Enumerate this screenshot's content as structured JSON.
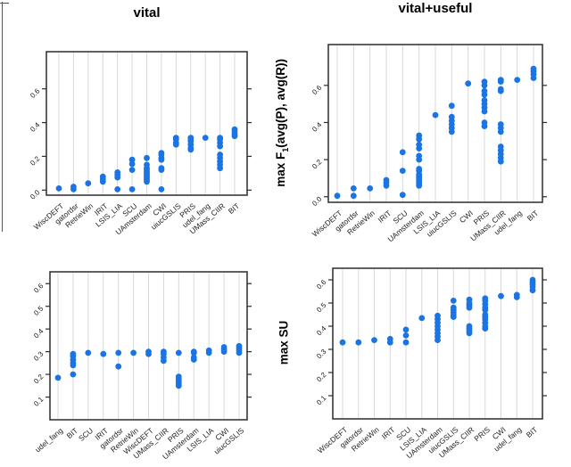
{
  "figure": {
    "column_titles": [
      "vital",
      "vital+useful"
    ],
    "ylabel_f1": {
      "prefix": "max F",
      "sub": "1",
      "suffix": "(avg(P), avg(R))"
    },
    "dot_color": "#1B74E4",
    "grid_color": "#D8D8D8",
    "axis_color": "#2B2B2B",
    "text_color": "#111111"
  },
  "chart_data": [
    {
      "id": "f1-vital",
      "type": "scatter",
      "title": "vital",
      "ylabel": "max F1(avg(P), avg(R))",
      "legend": "none",
      "grid": "vertical",
      "ylim": [
        -0.03,
        0.82
      ],
      "y_ticks": [
        0.0,
        0.2,
        0.4,
        0.6
      ],
      "y_tick_labels": [
        "0.0",
        "0.2",
        "0.4",
        "0.6"
      ],
      "categories": [
        "WiscDEFT",
        "gatordsr",
        "RetrieWin",
        "IRIT",
        "LSIS_LIA",
        "SCU",
        "UAmsterdam",
        "CWI",
        "uiucGSLIS",
        "PRIS",
        "udel_fang",
        "UMass_CIIR",
        "BIT"
      ],
      "values": [
        [
          0.01
        ],
        [
          0.005,
          0.02
        ],
        [
          0.04
        ],
        [
          0.05,
          0.065,
          0.08
        ],
        [
          0.005,
          0.075,
          0.09,
          0.105
        ],
        [
          0.005,
          0.12,
          0.155,
          0.18
        ],
        [
          0.05,
          0.06,
          0.07,
          0.08,
          0.09,
          0.1,
          0.11,
          0.12,
          0.13,
          0.15,
          0.19
        ],
        [
          0.005,
          0.12,
          0.13,
          0.18,
          0.19,
          0.21,
          0.22
        ],
        [
          0.27,
          0.28,
          0.3,
          0.31
        ],
        [
          0.24,
          0.25,
          0.27,
          0.29,
          0.3,
          0.31
        ],
        [
          0.31
        ],
        [
          0.13,
          0.15,
          0.17,
          0.19,
          0.21,
          0.26,
          0.28,
          0.3,
          0.31
        ],
        [
          0.32,
          0.33,
          0.345,
          0.36
        ]
      ]
    },
    {
      "id": "f1-vital-useful",
      "type": "scatter",
      "title": "vital+useful",
      "ylabel": "max F1(avg(P), avg(R))",
      "legend": "none",
      "grid": "vertical",
      "ylim": [
        -0.03,
        0.82
      ],
      "y_ticks": [
        0.0,
        0.2,
        0.4,
        0.6
      ],
      "y_tick_labels": [
        "0.0",
        "0.2",
        "0.4",
        "0.6"
      ],
      "categories": [
        "WiscDEFT",
        "gatordsr",
        "RetrieWin",
        "IRIT",
        "SCU",
        "UAmsterdam",
        "LSIS_LIA",
        "uiucGSLIS",
        "CWI",
        "PRIS",
        "UMass_CIIR",
        "udel_fang",
        "BIT"
      ],
      "values": [
        [
          0.005
        ],
        [
          0.005,
          0.045
        ],
        [
          0.045
        ],
        [
          0.06,
          0.075,
          0.09
        ],
        [
          0.01,
          0.14,
          0.24
        ],
        [
          0.06,
          0.07,
          0.08,
          0.09,
          0.1,
          0.11,
          0.12,
          0.14,
          0.15,
          0.2,
          0.22,
          0.26,
          0.28,
          0.31,
          0.33
        ],
        [
          0.44
        ],
        [
          0.35,
          0.37,
          0.39,
          0.41,
          0.43,
          0.49
        ],
        [
          0.61
        ],
        [
          0.38,
          0.4,
          0.46,
          0.48,
          0.5,
          0.52,
          0.55,
          0.57,
          0.6,
          0.62
        ],
        [
          0.19,
          0.21,
          0.23,
          0.25,
          0.27,
          0.35,
          0.37,
          0.39,
          0.57,
          0.58,
          0.62,
          0.63
        ],
        [
          0.63
        ],
        [
          0.64,
          0.66,
          0.675,
          0.69
        ]
      ]
    },
    {
      "id": "su-vital",
      "type": "scatter",
      "title": "vital",
      "ylabel": "max SU",
      "legend": "none",
      "grid": "vertical",
      "ylim": [
        0.0,
        0.652
      ],
      "y_ticks": [
        0.1,
        0.2,
        0.3,
        0.4,
        0.5,
        0.6
      ],
      "y_tick_labels": [
        "0.1",
        "0.2",
        "0.3",
        "0.4",
        "0.5",
        "0.6"
      ],
      "categories": [
        "udel_fang",
        "BIT",
        "SCU",
        "IRIT",
        "gatordsr",
        "RetrieWin",
        "WiscDEFT",
        "UMass_CIIR",
        "PRIS",
        "UAmsterdam",
        "LSIS_LIA",
        "CWI",
        "uiucGSLIS"
      ],
      "values": [
        [
          0.185
        ],
        [
          0.2,
          0.24,
          0.25,
          0.265,
          0.28,
          0.29
        ],
        [
          0.295
        ],
        [
          0.29
        ],
        [
          0.235,
          0.295
        ],
        [
          0.295
        ],
        [
          0.29,
          0.3
        ],
        [
          0.26,
          0.275,
          0.29,
          0.3
        ],
        [
          0.15,
          0.16,
          0.17,
          0.18,
          0.19,
          0.295
        ],
        [
          0.265,
          0.275,
          0.295,
          0.3
        ],
        [
          0.295,
          0.305
        ],
        [
          0.3,
          0.31,
          0.32
        ],
        [
          0.295,
          0.305,
          0.315,
          0.325
        ]
      ]
    },
    {
      "id": "su-vital-useful",
      "type": "scatter",
      "title": "vital+useful",
      "ylabel": "max SU",
      "legend": "none",
      "grid": "vertical",
      "ylim": [
        0.0,
        0.65
      ],
      "y_ticks": [
        0.1,
        0.2,
        0.3,
        0.4,
        0.5,
        0.6
      ],
      "y_tick_labels": [
        "0.1",
        "0.2",
        "0.3",
        "0.4",
        "0.5",
        "0.6"
      ],
      "categories": [
        "WiscDEFT",
        "gatordsr",
        "RetrieWin",
        "IRIT",
        "SCU",
        "LSIS_LIA",
        "UAmsterdam",
        "uiucGSLIS",
        "UMass_CIIR",
        "PRIS",
        "CWI",
        "udel_fang",
        "BIT"
      ],
      "values": [
        [
          0.33
        ],
        [
          0.33
        ],
        [
          0.34
        ],
        [
          0.33,
          0.345
        ],
        [
          0.33,
          0.36,
          0.385
        ],
        [
          0.435
        ],
        [
          0.34,
          0.355,
          0.37,
          0.385,
          0.4,
          0.415,
          0.43,
          0.445
        ],
        [
          0.44,
          0.45,
          0.46,
          0.47,
          0.48,
          0.51
        ],
        [
          0.37,
          0.38,
          0.39,
          0.4,
          0.48,
          0.49,
          0.5,
          0.515
        ],
        [
          0.39,
          0.4,
          0.415,
          0.43,
          0.44,
          0.45,
          0.47,
          0.48,
          0.495,
          0.51,
          0.52
        ],
        [
          0.53
        ],
        [
          0.525,
          0.535
        ],
        [
          0.555,
          0.57,
          0.58,
          0.59,
          0.6
        ]
      ]
    }
  ]
}
